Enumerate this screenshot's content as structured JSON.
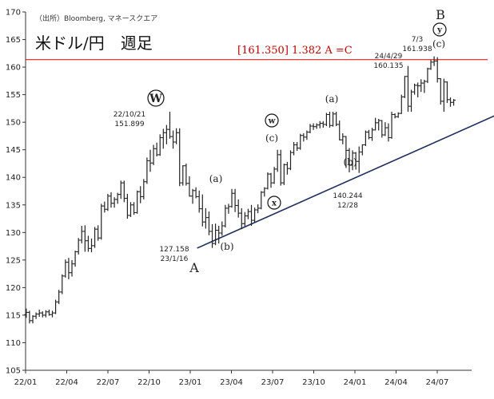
{
  "chart_data": {
    "type": "bar",
    "title": "米ドル/円　週足",
    "source": "（出所）Bloomberg, マネースクエア",
    "ylim": [
      105,
      170
    ],
    "ytick_values": [
      105,
      110,
      115,
      120,
      125,
      130,
      135,
      140,
      145,
      150,
      155,
      160,
      165,
      170
    ],
    "xtick_labels": [
      "22/01",
      "22/04",
      "22/07",
      "22/10",
      "23/01",
      "23/04",
      "23/07",
      "23/10",
      "24/01",
      "24/04",
      "24/07"
    ],
    "xlim_months": [
      0,
      32
    ],
    "resistance": {
      "value": 161.35,
      "label": "[161.350]  1.382 A =C",
      "color": "#e00000"
    },
    "trendline": {
      "from": {
        "date": "23/01/16",
        "value": 127.158
      },
      "to": {
        "date": "24/11",
        "value": 151.3
      },
      "color": "#1f2f5c"
    },
    "series": [
      {
        "ohlc_weekly_approx": [
          [
            115.1,
            116.2,
            114.5,
            115.5
          ],
          [
            115.5,
            115.8,
            113.5,
            114.0
          ],
          [
            114.0,
            115.0,
            113.5,
            114.8
          ],
          [
            114.8,
            115.5,
            114.3,
            115.2
          ],
          [
            115.2,
            116.0,
            114.7,
            115.4
          ],
          [
            115.4,
            115.7,
            114.6,
            115.0
          ],
          [
            115.0,
            115.9,
            114.6,
            115.6
          ],
          [
            115.6,
            116.0,
            114.9,
            115.1
          ],
          [
            115.1,
            115.8,
            114.6,
            115.4
          ],
          [
            115.4,
            117.8,
            115.2,
            117.4
          ],
          [
            117.4,
            119.6,
            117.0,
            119.2
          ],
          [
            119.2,
            122.4,
            118.8,
            122.1
          ],
          [
            122.1,
            125.1,
            121.8,
            124.6
          ],
          [
            124.6,
            125.4,
            121.5,
            122.7
          ],
          [
            122.7,
            125.0,
            122.0,
            124.3
          ],
          [
            124.3,
            126.7,
            123.8,
            126.5
          ],
          [
            126.5,
            129.0,
            126.0,
            128.6
          ],
          [
            128.6,
            131.2,
            128.0,
            130.2
          ],
          [
            130.2,
            131.3,
            126.5,
            128.5
          ],
          [
            128.5,
            129.4,
            126.5,
            127.1
          ],
          [
            127.1,
            128.9,
            126.4,
            127.6
          ],
          [
            127.6,
            131.0,
            127.2,
            130.6
          ],
          [
            130.6,
            131.3,
            128.5,
            129.0
          ],
          [
            129.0,
            135.2,
            128.7,
            134.8
          ],
          [
            134.8,
            135.6,
            133.6,
            134.2
          ],
          [
            134.2,
            137.0,
            133.9,
            136.6
          ],
          [
            136.6,
            137.3,
            134.5,
            135.3
          ],
          [
            135.3,
            136.4,
            134.5,
            136.0
          ],
          [
            136.0,
            137.2,
            135.2,
            136.9
          ],
          [
            136.9,
            139.4,
            136.1,
            139.0
          ],
          [
            139.0,
            139.4,
            135.5,
            136.2
          ],
          [
            136.2,
            137.0,
            132.5,
            133.1
          ],
          [
            133.1,
            135.5,
            132.8,
            135.0
          ],
          [
            135.0,
            135.5,
            133.2,
            133.6
          ],
          [
            133.6,
            137.6,
            133.4,
            137.4
          ],
          [
            137.4,
            138.4,
            135.3,
            136.5
          ],
          [
            136.5,
            139.7,
            136.0,
            139.2
          ],
          [
            139.2,
            143.6,
            138.8,
            143.0
          ],
          [
            143.0,
            145.0,
            141.0,
            142.6
          ],
          [
            142.6,
            145.9,
            142.2,
            145.2
          ],
          [
            145.2,
            146.3,
            143.8,
            144.1
          ],
          [
            144.1,
            147.8,
            143.9,
            147.2
          ],
          [
            147.2,
            148.8,
            145.2,
            148.1
          ],
          [
            148.1,
            149.5,
            146.0,
            148.7
          ],
          [
            148.7,
            151.9,
            147.0,
            147.4
          ],
          [
            147.4,
            148.5,
            145.2,
            146.4
          ],
          [
            146.4,
            148.9,
            146.0,
            148.1
          ],
          [
            148.1,
            148.9,
            138.4,
            139.0
          ],
          [
            139.0,
            142.2,
            138.5,
            142.1
          ],
          [
            142.1,
            142.5,
            138.5,
            138.9
          ],
          [
            138.9,
            140.2,
            136.5,
            136.6
          ],
          [
            136.6,
            137.9,
            135.2,
            137.6
          ],
          [
            137.6,
            138.2,
            136.2,
            136.5
          ],
          [
            136.5,
            137.6,
            133.6,
            134.3
          ],
          [
            134.3,
            136.9,
            131.1,
            131.9
          ],
          [
            131.9,
            134.4,
            130.7,
            132.7
          ],
          [
            132.7,
            133.8,
            129.5,
            130.2
          ],
          [
            130.2,
            131.5,
            127.2,
            128.0
          ],
          [
            128.0,
            131.6,
            127.7,
            130.4
          ],
          [
            130.4,
            131.2,
            128.0,
            129.9
          ],
          [
            129.9,
            132.0,
            129.4,
            131.2
          ],
          [
            131.2,
            135.0,
            130.9,
            134.4
          ],
          [
            134.4,
            135.2,
            133.4,
            134.7
          ],
          [
            134.7,
            137.9,
            134.5,
            137.1
          ],
          [
            137.1,
            137.9,
            133.7,
            134.9
          ],
          [
            134.9,
            136.0,
            132.7,
            133.5
          ],
          [
            133.5,
            134.4,
            130.6,
            131.6
          ],
          [
            131.6,
            133.7,
            131.1,
            133.0
          ],
          [
            133.0,
            134.3,
            132.4,
            133.8
          ],
          [
            133.8,
            135.0,
            131.2,
            132.2
          ],
          [
            132.2,
            134.5,
            131.8,
            134.1
          ],
          [
            134.1,
            135.1,
            133.5,
            134.4
          ],
          [
            134.4,
            137.5,
            134.2,
            137.3
          ],
          [
            137.3,
            138.2,
            136.5,
            138.0
          ],
          [
            138.0,
            140.9,
            137.8,
            140.6
          ],
          [
            140.6,
            140.8,
            138.1,
            139.0
          ],
          [
            139.0,
            141.9,
            138.8,
            141.5
          ],
          [
            141.5,
            145.0,
            141.0,
            144.1
          ],
          [
            144.1,
            145.0,
            138.5,
            139.0
          ],
          [
            139.0,
            142.5,
            138.6,
            142.3
          ],
          [
            142.3,
            142.8,
            140.5,
            141.6
          ],
          [
            141.6,
            144.9,
            141.3,
            144.5
          ],
          [
            144.5,
            146.4,
            144.0,
            145.9
          ],
          [
            145.9,
            146.4,
            144.8,
            145.3
          ],
          [
            145.3,
            147.9,
            145.0,
            147.6
          ],
          [
            147.6,
            148.0,
            146.5,
            147.3
          ],
          [
            147.3,
            148.5,
            146.8,
            148.2
          ],
          [
            148.2,
            149.7,
            148.0,
            149.3
          ],
          [
            149.3,
            149.8,
            148.6,
            149.2
          ],
          [
            149.2,
            149.8,
            148.8,
            149.5
          ],
          [
            149.5,
            150.2,
            148.9,
            149.8
          ],
          [
            149.8,
            150.2,
            149.0,
            149.6
          ],
          [
            149.6,
            151.7,
            149.3,
            151.4
          ],
          [
            151.4,
            151.9,
            149.0,
            149.4
          ],
          [
            149.4,
            151.9,
            149.2,
            151.5
          ],
          [
            151.5,
            151.9,
            149.3,
            149.6
          ],
          [
            149.6,
            150.3,
            146.7,
            146.8
          ],
          [
            146.8,
            148.0,
            146.0,
            147.4
          ],
          [
            147.4,
            147.5,
            141.7,
            144.9
          ],
          [
            144.9,
            145.3,
            140.9,
            142.2
          ],
          [
            142.2,
            144.9,
            141.3,
            144.4
          ],
          [
            144.4,
            144.6,
            141.4,
            142.9
          ],
          [
            142.9,
            145.6,
            140.8,
            144.6
          ],
          [
            144.6,
            146.0,
            144.0,
            145.9
          ],
          [
            145.9,
            148.5,
            145.7,
            148.2
          ],
          [
            148.2,
            148.6,
            146.9,
            147.2
          ],
          [
            147.2,
            149.0,
            146.6,
            148.6
          ],
          [
            148.6,
            150.8,
            148.5,
            149.9
          ],
          [
            149.9,
            150.6,
            148.5,
            150.3
          ],
          [
            150.3,
            150.4,
            147.2,
            147.7
          ],
          [
            147.7,
            150.0,
            147.5,
            149.0
          ],
          [
            149.0,
            149.8,
            146.5,
            147.2
          ],
          [
            147.2,
            151.9,
            147.0,
            151.4
          ],
          [
            151.4,
            151.6,
            150.7,
            151.0
          ],
          [
            151.0,
            151.8,
            150.8,
            151.6
          ],
          [
            151.6,
            155.0,
            151.5,
            154.6
          ],
          [
            154.6,
            158.4,
            154.4,
            158.3
          ],
          [
            158.3,
            160.2,
            151.9,
            152.9
          ],
          [
            152.9,
            155.9,
            151.9,
            155.5
          ],
          [
            155.5,
            157.0,
            155.0,
            156.7
          ],
          [
            156.7,
            157.2,
            154.5,
            156.6
          ],
          [
            156.6,
            157.8,
            155.5,
            157.1
          ],
          [
            157.1,
            157.7,
            155.3,
            157.4
          ],
          [
            157.4,
            159.9,
            157.1,
            159.7
          ],
          [
            159.7,
            161.3,
            159.5,
            160.9
          ],
          [
            160.9,
            161.95,
            160.2,
            161.1
          ],
          [
            161.1,
            161.8,
            157.2,
            157.9
          ],
          [
            157.9,
            158.0,
            153.2,
            153.8
          ],
          [
            153.8,
            157.9,
            151.9,
            157.3
          ],
          [
            157.3,
            157.4,
            153.5,
            154.1
          ],
          [
            154.1,
            154.5,
            152.8,
            153.6
          ],
          [
            153.6,
            154.2,
            153.0,
            154.0
          ]
        ]
      }
    ],
    "annotations": {
      "point_labels": [
        {
          "key": "W",
          "text": "W",
          "circled": true
        },
        {
          "key": "w_small",
          "text": "w",
          "circled": true
        },
        {
          "key": "x_small",
          "text": "x",
          "circled": true
        },
        {
          "key": "y_small",
          "text": "y",
          "circled": true
        }
      ],
      "wave_labels": [
        "(a)",
        "(b)",
        "(c)",
        "(a)",
        "(b)",
        "(c)"
      ],
      "letters": [
        "A",
        "B"
      ],
      "price_notes": [
        {
          "date": "22/10/21",
          "value": "151.899"
        },
        {
          "date": "23/1/16",
          "value": "127.158"
        },
        {
          "date": "12/28",
          "value": "140.244"
        },
        {
          "date": "24/4/29",
          "value": "160.135"
        },
        {
          "date": "7/3",
          "value": "161.938"
        }
      ]
    }
  }
}
